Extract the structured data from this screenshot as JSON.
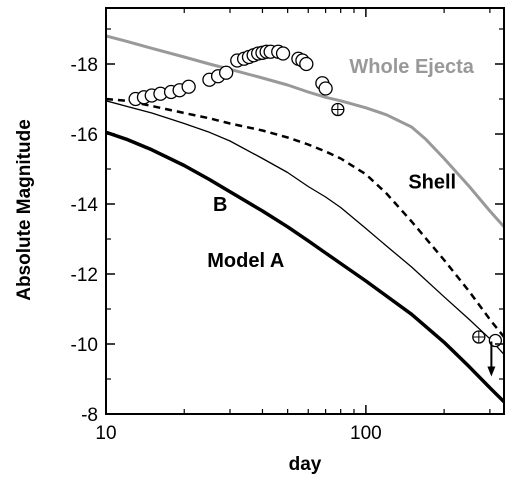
{
  "chart_data": {
    "type": "line",
    "xlabel": "day",
    "ylabel": "Absolute Magnitude",
    "xscale": "log",
    "xlim": [
      10,
      340
    ],
    "ylim": [
      -8,
      -19.6
    ],
    "y_reversed": true,
    "x_ticks": [
      {
        "value": 10,
        "label": "10"
      },
      {
        "value": 100,
        "label": "100"
      }
    ],
    "y_ticks": [
      {
        "value": -8,
        "label": "-8"
      },
      {
        "value": -10,
        "label": "-10"
      },
      {
        "value": -12,
        "label": "-12"
      },
      {
        "value": -14,
        "label": "-14"
      },
      {
        "value": -16,
        "label": "-16"
      },
      {
        "value": -18,
        "label": "-18"
      }
    ],
    "series": [
      {
        "key": "whole",
        "color": "#999999",
        "dash": "solid",
        "width": 3,
        "x": [
          10,
          12,
          15,
          20,
          25,
          30,
          40,
          50,
          60,
          70,
          80,
          100,
          120,
          150,
          170,
          200,
          250,
          300,
          340
        ],
        "y": [
          -18.8,
          -18.65,
          -18.45,
          -18.2,
          -18.0,
          -17.85,
          -17.6,
          -17.4,
          -17.2,
          -17.05,
          -16.95,
          -16.75,
          -16.55,
          -16.2,
          -15.85,
          -15.3,
          -14.5,
          -13.8,
          -13.35
        ]
      },
      {
        "key": "shell",
        "color": "#000000",
        "dash": "dashed",
        "width": 2.5,
        "x": [
          10,
          12,
          15,
          20,
          25,
          30,
          40,
          50,
          60,
          70,
          80,
          100,
          120,
          150,
          200,
          250,
          300,
          340
        ],
        "y": [
          -17.0,
          -16.95,
          -16.8,
          -16.6,
          -16.45,
          -16.3,
          -16.1,
          -15.9,
          -15.7,
          -15.5,
          -15.3,
          -14.85,
          -14.3,
          -13.5,
          -12.4,
          -11.5,
          -10.7,
          -10.2
        ]
      },
      {
        "key": "model_b",
        "color": "#000000",
        "dash": "solid",
        "width": 1.3,
        "x": [
          10,
          15,
          20,
          25,
          30,
          40,
          50,
          60,
          70,
          80,
          100,
          120,
          150,
          200,
          250,
          300,
          340
        ],
        "y": [
          -16.95,
          -16.6,
          -16.3,
          -16.05,
          -15.8,
          -15.3,
          -14.9,
          -14.5,
          -14.2,
          -13.9,
          -13.3,
          -12.8,
          -12.2,
          -11.35,
          -10.7,
          -10.15,
          -9.7
        ]
      },
      {
        "key": "model_a",
        "color": "#000000",
        "dash": "solid",
        "width": 3.5,
        "x": [
          10,
          12,
          15,
          20,
          25,
          30,
          40,
          50,
          60,
          70,
          80,
          100,
          150,
          200,
          250,
          300,
          340
        ],
        "y": [
          -16.05,
          -15.85,
          -15.55,
          -15.1,
          -14.7,
          -14.35,
          -13.8,
          -13.35,
          -12.95,
          -12.6,
          -12.3,
          -11.8,
          -10.85,
          -10.05,
          -9.35,
          -8.75,
          -8.35
        ]
      }
    ],
    "observations": [
      {
        "x": 13.0,
        "y": -17.0
      },
      {
        "x": 14.0,
        "y": -17.05
      },
      {
        "x": 15.0,
        "y": -17.1
      },
      {
        "x": 16.2,
        "y": -17.15
      },
      {
        "x": 17.8,
        "y": -17.2
      },
      {
        "x": 19.2,
        "y": -17.25
      },
      {
        "x": 20.8,
        "y": -17.35
      },
      {
        "x": 25.0,
        "y": -17.55
      },
      {
        "x": 27.0,
        "y": -17.65
      },
      {
        "x": 29.0,
        "y": -17.75
      },
      {
        "x": 32.0,
        "y": -18.1
      },
      {
        "x": 34.0,
        "y": -18.15
      },
      {
        "x": 35.5,
        "y": -18.2
      },
      {
        "x": 37.0,
        "y": -18.25
      },
      {
        "x": 38.5,
        "y": -18.3
      },
      {
        "x": 40.0,
        "y": -18.32
      },
      {
        "x": 41.5,
        "y": -18.35
      },
      {
        "x": 43.0,
        "y": -18.35
      },
      {
        "x": 46.0,
        "y": -18.35
      },
      {
        "x": 48.0,
        "y": -18.3
      },
      {
        "x": 55.0,
        "y": -18.15
      },
      {
        "x": 57.0,
        "y": -18.1
      },
      {
        "x": 59.0,
        "y": -18.0
      },
      {
        "x": 68.0,
        "y": -17.45
      },
      {
        "x": 70.0,
        "y": -17.3
      }
    ],
    "special_points": [
      {
        "x": 78,
        "y": -16.7,
        "kind": "crossed"
      },
      {
        "x": 272,
        "y": -10.2,
        "kind": "crossed"
      },
      {
        "x": 315,
        "y": -10.1,
        "kind": "upper-limit"
      }
    ],
    "annotations": [
      {
        "text": "Whole Ejecta",
        "color": "#999999",
        "x": 150,
        "y": -17.75
      },
      {
        "text": "Shell",
        "color": "#000000",
        "x": 180,
        "y": -14.45
      },
      {
        "text": "B",
        "color": "#000000",
        "x": 27.5,
        "y": -13.8
      },
      {
        "text": "Model A",
        "color": "#000000",
        "x": 34.5,
        "y": -12.2
      }
    ]
  }
}
